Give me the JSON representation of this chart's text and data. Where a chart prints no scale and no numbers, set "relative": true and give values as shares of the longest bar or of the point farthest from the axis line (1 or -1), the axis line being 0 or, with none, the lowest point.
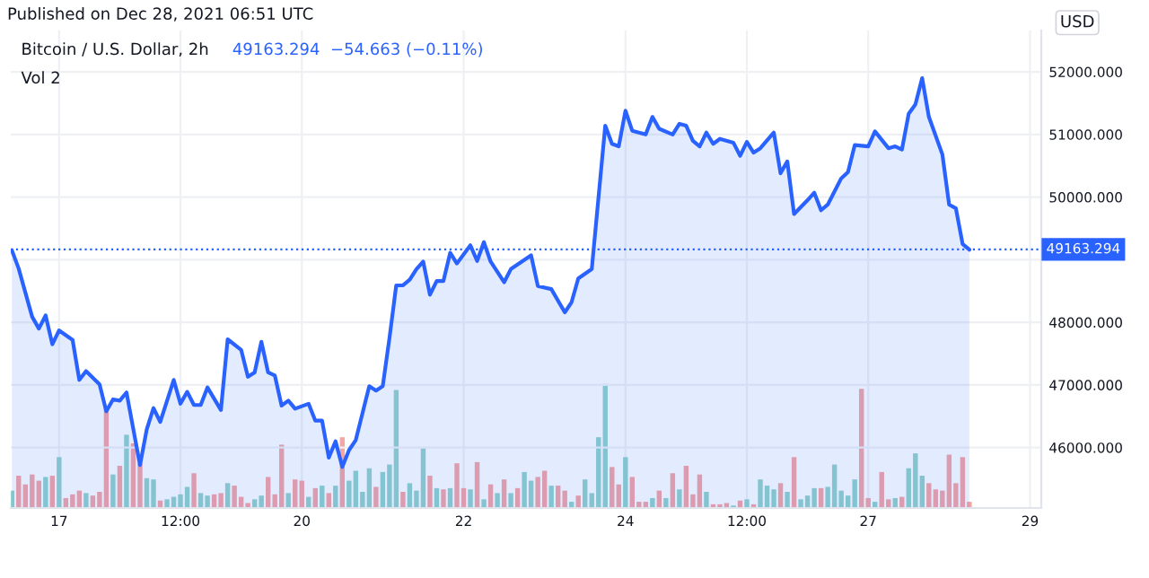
{
  "chart_data": [
    {
      "type": "area",
      "title": "Bitcoin / U.S. Dollar, 2h",
      "ylabel": "USD",
      "annotations": [
        "Published on Dec 28, 2021 06:51 UTC",
        "49163.294  −54.663 (−0.11%)",
        "Vol 2"
      ],
      "series": [
        {
          "color": "#2962ff",
          "x": [
            "2021-12-16T10:00",
            "2021-12-16T12:00",
            "2021-12-16T16:00",
            "2021-12-16T18:00",
            "2021-12-16T20:00",
            "2021-12-16T22:00",
            "2021-12-17T00:00",
            "2021-12-17T04:00",
            "2021-12-17T06:00",
            "2021-12-17T08:00",
            "2021-12-17T12:00",
            "2021-12-17T14:00",
            "2021-12-17T16:00",
            "2021-12-17T18:00",
            "2021-12-17T20:00",
            "2021-12-18T00:00",
            "2021-12-18T02:00",
            "2021-12-18T04:00",
            "2021-12-18T06:00",
            "2021-12-18T10:00",
            "2021-12-18T12:00",
            "2021-12-18T14:00",
            "2021-12-18T16:00",
            "2021-12-18T18:00",
            "2021-12-18T20:00",
            "2021-12-19T00:00",
            "2021-12-19T02:00",
            "2021-12-19T06:00",
            "2021-12-19T08:00",
            "2021-12-19T10:00",
            "2021-12-19T12:00",
            "2021-12-19T14:00",
            "2021-12-19T16:00",
            "2021-12-19T18:00",
            "2021-12-19T20:00",
            "2021-12-19T22:00",
            "2021-12-20T02:00",
            "2021-12-20T04:00",
            "2021-12-20T06:00",
            "2021-12-20T08:00",
            "2021-12-20T10:00",
            "2021-12-20T12:00",
            "2021-12-20T14:00",
            "2021-12-20T16:00",
            "2021-12-20T20:00",
            "2021-12-20T22:00",
            "2021-12-21T00:00",
            "2021-12-21T02:00",
            "2021-12-21T04:00",
            "2021-12-21T06:00",
            "2021-12-21T08:00",
            "2021-12-21T10:00",
            "2021-12-21T12:00",
            "2021-12-21T14:00",
            "2021-12-21T16:00",
            "2021-12-21T18:00",
            "2021-12-21T20:00",
            "2021-12-21T22:00",
            "2021-12-22T02:00",
            "2021-12-22T04:00",
            "2021-12-22T06:00",
            "2021-12-22T08:00",
            "2021-12-22T12:00",
            "2021-12-22T14:00",
            "2021-12-22T20:00",
            "2021-12-22T22:00",
            "2021-12-23T02:00",
            "2021-12-23T06:00",
            "2021-12-23T08:00",
            "2021-12-23T10:00",
            "2021-12-23T14:00",
            "2021-12-23T18:00",
            "2021-12-23T20:00",
            "2021-12-23T22:00",
            "2021-12-24T00:00",
            "2021-12-24T02:00",
            "2021-12-24T06:00",
            "2021-12-24T08:00",
            "2021-12-24T10:00",
            "2021-12-24T14:00",
            "2021-12-24T16:00",
            "2021-12-24T18:00",
            "2021-12-24T20:00",
            "2021-12-24T22:00",
            "2021-12-25T00:00",
            "2021-12-25T02:00",
            "2021-12-25T04:00",
            "2021-12-25T08:00",
            "2021-12-25T10:00",
            "2021-12-25T12:00",
            "2021-12-25T14:00",
            "2021-12-25T16:00",
            "2021-12-25T20:00",
            "2021-12-25T22:00",
            "2021-12-26T00:00",
            "2021-12-26T02:00",
            "2021-12-26T06:00",
            "2021-12-26T08:00",
            "2021-12-26T10:00",
            "2021-12-26T12:00",
            "2021-12-26T16:00",
            "2021-12-26T18:00",
            "2021-12-26T20:00",
            "2021-12-27T00:00",
            "2021-12-27T02:00",
            "2021-12-27T06:00",
            "2021-12-27T08:00",
            "2021-12-27T10:00",
            "2021-12-27T12:00",
            "2021-12-27T14:00",
            "2021-12-27T16:00",
            "2021-12-27T18:00",
            "2021-12-27T22:00",
            "2021-12-28T00:00",
            "2021-12-28T02:00",
            "2021-12-28T04:00",
            "2021-12-28T06:00"
          ],
          "values": [
            49150,
            48860,
            48090,
            47900,
            48110,
            47650,
            47870,
            47720,
            47080,
            47220,
            47010,
            46580,
            46770,
            46750,
            46880,
            45720,
            46290,
            46630,
            46410,
            47080,
            46700,
            46890,
            46680,
            46680,
            46960,
            46600,
            47730,
            47560,
            47130,
            47200,
            47690,
            47200,
            47150,
            46670,
            46750,
            46620,
            46700,
            46430,
            46430,
            45840,
            46100,
            45690,
            45960,
            46120,
            46980,
            46910,
            46980,
            47750,
            48590,
            48590,
            48680,
            48850,
            48970,
            48440,
            48660,
            48660,
            49110,
            48940,
            49230,
            48980,
            49280,
            48970,
            48640,
            48850,
            49070,
            48580,
            48530,
            48160,
            48320,
            48700,
            48850,
            51140,
            50850,
            50810,
            51380,
            51060,
            51000,
            51280,
            51090,
            51000,
            51170,
            51140,
            50900,
            50810,
            51030,
            50850,
            50930,
            50870,
            50660,
            50880,
            50710,
            50780,
            51030,
            50380,
            50570,
            49730,
            49950,
            50070,
            49790,
            49880,
            50300,
            50400,
            50830,
            50810,
            51050,
            50780,
            50810,
            50760,
            51330,
            51480,
            51900,
            51280,
            50680,
            49880,
            49820,
            49250,
            49160
          ]
        }
      ],
      "xlim": [
        "2021-12-16T09:40",
        "2021-12-29T03:20"
      ],
      "xticks": [
        {
          "value": "2021-12-17",
          "label": "17"
        },
        {
          "value": "2021-12-18T12:00",
          "label": "12:00"
        },
        {
          "value": "2021-12-20",
          "label": "20"
        },
        {
          "value": "2021-12-22",
          "label": "22"
        },
        {
          "value": "2021-12-24",
          "label": "24"
        },
        {
          "value": "2021-12-25T12:00",
          "label": "12:00"
        },
        {
          "value": "2021-12-27",
          "label": "27"
        },
        {
          "value": "2021-12-29",
          "label": "29"
        }
      ],
      "ylim": [
        45035,
        52660
      ],
      "yticks": [
        {
          "value": 46000,
          "label": "46000.000"
        },
        {
          "value": 47000,
          "label": "47000.000"
        },
        {
          "value": 48000,
          "label": "48000.000"
        },
        {
          "value": 49000,
          "label": null
        },
        {
          "value": 50000,
          "label": "50000.000"
        },
        {
          "value": 51000,
          "label": "51000.000"
        },
        {
          "value": 52000,
          "label": "52000.000"
        }
      ],
      "ref_lines": [
        {
          "axis": "y",
          "value": 49163.294,
          "label": "49163.294",
          "color": "#2962ff",
          "line_style": "dotted"
        }
      ],
      "grid": true,
      "legend": false
    },
    {
      "type": "bar",
      "relative": true,
      "tick_labels": false,
      "xlim": [
        "2021-12-16T09:40",
        "2021-12-29T03:20"
      ],
      "x": [
        "2021-12-16T10:00",
        "2021-12-16T12:00",
        "2021-12-16T14:00",
        "2021-12-16T16:00",
        "2021-12-16T18:00",
        "2021-12-16T20:00",
        "2021-12-16T22:00",
        "2021-12-17T00:00",
        "2021-12-17T02:00",
        "2021-12-17T04:00",
        "2021-12-17T06:00",
        "2021-12-17T08:00",
        "2021-12-17T10:00",
        "2021-12-17T12:00",
        "2021-12-17T14:00",
        "2021-12-17T16:00",
        "2021-12-17T18:00",
        "2021-12-17T20:00",
        "2021-12-17T22:00",
        "2021-12-18T00:00",
        "2021-12-18T02:00",
        "2021-12-18T04:00",
        "2021-12-18T06:00",
        "2021-12-18T08:00",
        "2021-12-18T10:00",
        "2021-12-18T12:00",
        "2021-12-18T14:00",
        "2021-12-18T16:00",
        "2021-12-18T18:00",
        "2021-12-18T20:00",
        "2021-12-18T22:00",
        "2021-12-19T00:00",
        "2021-12-19T02:00",
        "2021-12-19T04:00",
        "2021-12-19T06:00",
        "2021-12-19T08:00",
        "2021-12-19T10:00",
        "2021-12-19T12:00",
        "2021-12-19T14:00",
        "2021-12-19T16:00",
        "2021-12-19T18:00",
        "2021-12-19T20:00",
        "2021-12-19T22:00",
        "2021-12-20T00:00",
        "2021-12-20T02:00",
        "2021-12-20T04:00",
        "2021-12-20T06:00",
        "2021-12-20T08:00",
        "2021-12-20T10:00",
        "2021-12-20T12:00",
        "2021-12-20T14:00",
        "2021-12-20T16:00",
        "2021-12-20T18:00",
        "2021-12-20T20:00",
        "2021-12-20T22:00",
        "2021-12-21T00:00",
        "2021-12-21T02:00",
        "2021-12-21T04:00",
        "2021-12-21T06:00",
        "2021-12-21T08:00",
        "2021-12-21T10:00",
        "2021-12-21T12:00",
        "2021-12-21T14:00",
        "2021-12-21T16:00",
        "2021-12-21T18:00",
        "2021-12-21T20:00",
        "2021-12-21T22:00",
        "2021-12-22T00:00",
        "2021-12-22T02:00",
        "2021-12-22T04:00",
        "2021-12-22T06:00",
        "2021-12-22T08:00",
        "2021-12-22T10:00",
        "2021-12-22T12:00",
        "2021-12-22T14:00",
        "2021-12-22T16:00",
        "2021-12-22T18:00",
        "2021-12-22T20:00",
        "2021-12-22T22:00",
        "2021-12-23T00:00",
        "2021-12-23T02:00",
        "2021-12-23T04:00",
        "2021-12-23T06:00",
        "2021-12-23T08:00",
        "2021-12-23T10:00",
        "2021-12-23T12:00",
        "2021-12-23T14:00",
        "2021-12-23T16:00",
        "2021-12-23T18:00",
        "2021-12-23T20:00",
        "2021-12-23T22:00",
        "2021-12-24T00:00",
        "2021-12-24T02:00",
        "2021-12-24T04:00",
        "2021-12-24T06:00",
        "2021-12-24T08:00",
        "2021-12-24T10:00",
        "2021-12-24T12:00",
        "2021-12-24T14:00",
        "2021-12-24T16:00",
        "2021-12-24T18:00",
        "2021-12-24T20:00",
        "2021-12-24T22:00",
        "2021-12-25T00:00",
        "2021-12-25T02:00",
        "2021-12-25T04:00",
        "2021-12-25T06:00",
        "2021-12-25T08:00",
        "2021-12-25T10:00",
        "2021-12-25T12:00",
        "2021-12-25T14:00",
        "2021-12-25T16:00",
        "2021-12-25T18:00",
        "2021-12-25T20:00",
        "2021-12-25T22:00",
        "2021-12-26T00:00",
        "2021-12-26T02:00",
        "2021-12-26T04:00",
        "2021-12-26T06:00",
        "2021-12-26T08:00",
        "2021-12-26T10:00",
        "2021-12-26T12:00",
        "2021-12-26T14:00",
        "2021-12-26T16:00",
        "2021-12-26T18:00",
        "2021-12-26T20:00",
        "2021-12-26T22:00",
        "2021-12-27T00:00",
        "2021-12-27T02:00",
        "2021-12-27T04:00",
        "2021-12-27T06:00",
        "2021-12-27T08:00",
        "2021-12-27T10:00",
        "2021-12-27T12:00",
        "2021-12-27T14:00",
        "2021-12-27T16:00",
        "2021-12-27T18:00",
        "2021-12-27T20:00",
        "2021-12-27T22:00",
        "2021-12-28T00:00",
        "2021-12-28T02:00",
        "2021-12-28T04:00",
        "2021-12-28T06:00"
      ],
      "values": [
        0.14,
        0.26,
        0.19,
        0.27,
        0.22,
        0.25,
        0.26,
        0.41,
        0.08,
        0.11,
        0.14,
        0.12,
        0.1,
        0.13,
        0.81,
        0.27,
        0.34,
        0.59,
        0.52,
        0.36,
        0.24,
        0.23,
        0.06,
        0.07,
        0.09,
        0.11,
        0.17,
        0.28,
        0.12,
        0.1,
        0.11,
        0.12,
        0.2,
        0.18,
        0.09,
        0.04,
        0.07,
        0.1,
        0.25,
        0.11,
        0.51,
        0.12,
        0.23,
        0.22,
        0.09,
        0.16,
        0.18,
        0.12,
        0.18,
        0.57,
        0.22,
        0.3,
        0.13,
        0.32,
        0.17,
        0.29,
        0.35,
        0.95,
        0.13,
        0.2,
        0.14,
        0.48,
        0.26,
        0.16,
        0.15,
        0.16,
        0.36,
        0.16,
        0.15,
        0.37,
        0.07,
        0.19,
        0.12,
        0.23,
        0.12,
        0.16,
        0.29,
        0.22,
        0.25,
        0.3,
        0.18,
        0.18,
        0.14,
        0.05,
        0.1,
        0.23,
        0.12,
        0.57,
        1,
        0.33,
        0.19,
        0.41,
        0.25,
        0.05,
        0.05,
        0.08,
        0.14,
        0.08,
        0.28,
        0.15,
        0.34,
        0.11,
        0.27,
        0.13,
        0.03,
        0.03,
        0.04,
        0.02,
        0.06,
        0.07,
        0.03,
        0.23,
        0.18,
        0.15,
        0.2,
        0.13,
        0.41,
        0.07,
        0.1,
        0.16,
        0.16,
        0.17,
        0.35,
        0.14,
        0.1,
        0.23,
        0.96,
        0.08,
        0.05,
        0.29,
        0.07,
        0.08,
        0.09,
        0.32,
        0.44,
        0.26,
        0.2,
        0.15,
        0.14,
        0.43,
        0.2,
        0.41,
        0.05
      ],
      "colors": [
        "#92d3cb",
        "#f5a5a3",
        "#f5a5a3",
        "#f5a5a3",
        "#f5a5a3",
        "#92d3cb",
        "#f5a5a3",
        "#92d3cb",
        "#f5a5a3",
        "#f5a5a3",
        "#f5a5a3",
        "#92d3cb",
        "#f5a5a3",
        "#f5a5a3",
        "#f5a5a3",
        "#92d3cb",
        "#f5a5a3",
        "#92d3cb",
        "#f5a5a3",
        "#f5a5a3",
        "#92d3cb",
        "#92d3cb",
        "#f5a5a3",
        "#92d3cb",
        "#92d3cb",
        "#92d3cb",
        "#92d3cb",
        "#f5a5a3",
        "#92d3cb",
        "#92d3cb",
        "#f5a5a3",
        "#f5a5a3",
        "#92d3cb",
        "#f5a5a3",
        "#f5a5a3",
        "#f5a5a3",
        "#92d3cb",
        "#92d3cb",
        "#f5a5a3",
        "#f5a5a3",
        "#f5a5a3",
        "#92d3cb",
        "#f5a5a3",
        "#f5a5a3",
        "#92d3cb",
        "#f5a5a3",
        "#92d3cb",
        "#f5a5a3",
        "#92d3cb",
        "#f5a5a3",
        "#92d3cb",
        "#92d3cb",
        "#92d3cb",
        "#92d3cb",
        "#f5a5a3",
        "#92d3cb",
        "#92d3cb",
        "#92d3cb",
        "#f5a5a3",
        "#92d3cb",
        "#92d3cb",
        "#92d3cb",
        "#f5a5a3",
        "#92d3cb",
        "#f5a5a3",
        "#92d3cb",
        "#f5a5a3",
        "#f5a5a3",
        "#92d3cb",
        "#f5a5a3",
        "#92d3cb",
        "#f5a5a3",
        "#92d3cb",
        "#f5a5a3",
        "#92d3cb",
        "#f5a5a3",
        "#92d3cb",
        "#92d3cb",
        "#f5a5a3",
        "#f5a5a3",
        "#92d3cb",
        "#f5a5a3",
        "#f5a5a3",
        "#92d3cb",
        "#f5a5a3",
        "#92d3cb",
        "#92d3cb",
        "#92d3cb",
        "#92d3cb",
        "#f5a5a3",
        "#f5a5a3",
        "#92d3cb",
        "#f5a5a3",
        "#f5a5a3",
        "#f5a5a3",
        "#92d3cb",
        "#f5a5a3",
        "#92d3cb",
        "#f5a5a3",
        "#92d3cb",
        "#f5a5a3",
        "#f5a5a3",
        "#f5a5a3",
        "#92d3cb",
        "#f5a5a3",
        "#f5a5a3",
        "#f5a5a3",
        "#92d3cb",
        "#f5a5a3",
        "#92d3cb",
        "#f5a5a3",
        "#92d3cb",
        "#92d3cb",
        "#92d3cb",
        "#f5a5a3",
        "#92d3cb",
        "#f5a5a3",
        "#92d3cb",
        "#92d3cb",
        "#92d3cb",
        "#f5a5a3",
        "#92d3cb",
        "#92d3cb",
        "#92d3cb",
        "#92d3cb",
        "#92d3cb",
        "#f5a5a3",
        "#f5a5a3",
        "#92d3cb",
        "#f5a5a3",
        "#f5a5a3",
        "#92d3cb",
        "#f5a5a3",
        "#92d3cb",
        "#92d3cb",
        "#92d3cb",
        "#f5a5a3",
        "#f5a5a3",
        "#f5a5a3",
        "#f5a5a3",
        "#f5a5a3",
        "#f5a5a3",
        "#f5a5a3"
      ]
    }
  ]
}
